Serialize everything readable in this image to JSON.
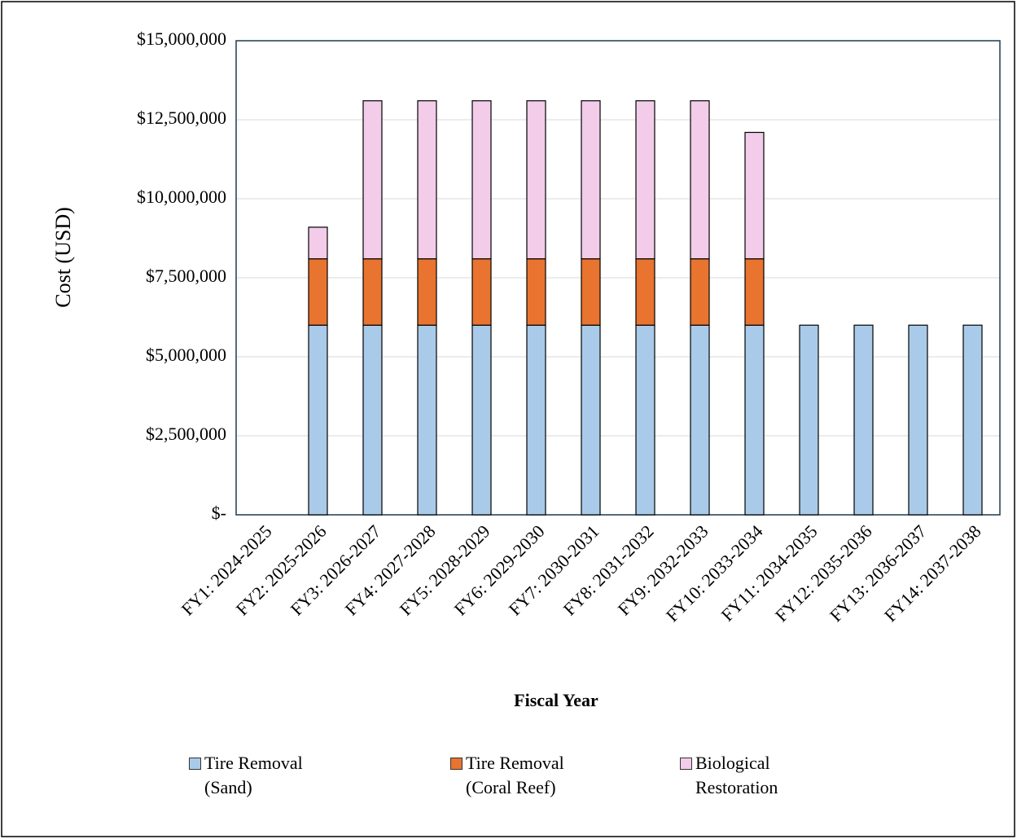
{
  "chart_data": {
    "type": "stacked_bar",
    "x_label": "Fiscal Year",
    "y_label": "Cost  (USD)",
    "categories": [
      "FY1: 2024-2025",
      "FY2: 2025-2026",
      "FY3: 2026-2027",
      "FY4: 2027-2028",
      "FY5: 2028-2029",
      "FY6: 2029-2030",
      "FY7: 2030-2031",
      "FY8: 2031-2032",
      "FY9: 2032-2033",
      "FY10: 2033-2034",
      "FY11: 2034-2035",
      "FY12: 2035-2036",
      "FY13: 2036-2037",
      "FY14: 2037-2038"
    ],
    "series": [
      {
        "name": "Tire Removal (Sand)",
        "color": "#a9cbe9",
        "values": [
          null,
          6000000,
          6000000,
          6000000,
          6000000,
          6000000,
          6000000,
          6000000,
          6000000,
          6000000,
          6000000,
          6000000,
          6000000,
          6000000
        ]
      },
      {
        "name": "Tire Removal (Coral Reef)",
        "color": "#e8742f",
        "values": [
          null,
          2100000,
          2100000,
          2100000,
          2100000,
          2100000,
          2100000,
          2100000,
          2100000,
          2100000,
          null,
          null,
          null,
          null
        ]
      },
      {
        "name": "Biological Restoration",
        "color": "#f2cce9",
        "values": [
          null,
          1000000,
          5000000,
          5000000,
          5000000,
          5000000,
          5000000,
          5000000,
          5000000,
          4000000,
          null,
          null,
          null,
          null
        ]
      }
    ],
    "ylim": [
      0,
      15000000
    ],
    "yticks": [
      {
        "value": 0,
        "label": "$-"
      },
      {
        "value": 2500000,
        "label": "$2,500,000"
      },
      {
        "value": 5000000,
        "label": "$5,000,000"
      },
      {
        "value": 7500000,
        "label": "$7,500,000"
      },
      {
        "value": 10000000,
        "label": "$10,000,000"
      },
      {
        "value": 12500000,
        "label": "$12,500,000"
      },
      {
        "value": 15000000,
        "label": "$15,000,000"
      }
    ],
    "grid": true
  }
}
